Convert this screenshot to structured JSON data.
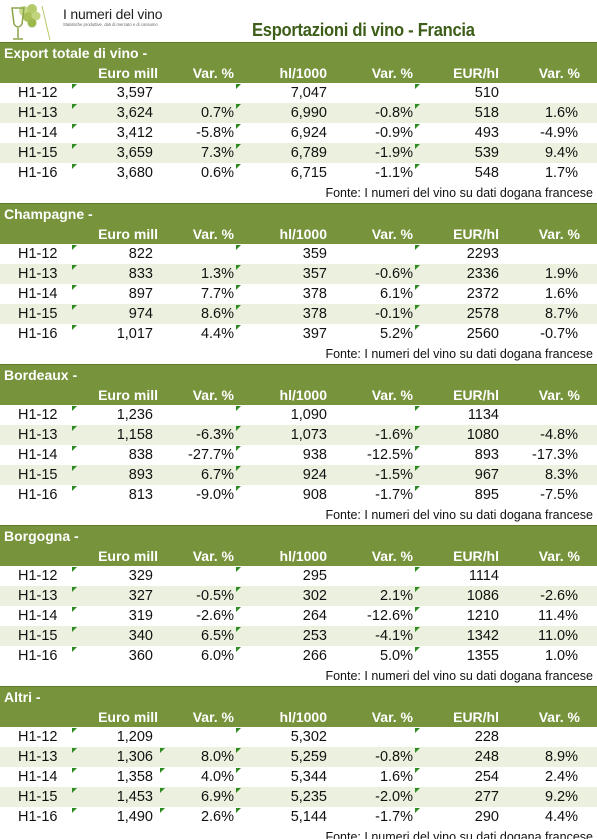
{
  "header": {
    "brand_name": "I numeri del vino",
    "brand_tagline": "Statistiche produttive, dati di mercato e di consumo",
    "page_title": "Esportazioni di vino - Francia"
  },
  "colors": {
    "header_green": "#77933c",
    "band_light": "#ebf1de",
    "title_green": "#3c5e18",
    "marker_green": "#2e8b22"
  },
  "icons": {
    "logo": "wine-glass-grapes-logo",
    "cell_marker": "green-triangle-icon"
  },
  "columns": [
    "",
    "Euro mill",
    "Var. %",
    "hl/1000",
    "Var. %",
    "EUR/hl",
    "Var. %"
  ],
  "source_note": "Fonte: I numeri del vino su dati dogana francese",
  "sections": [
    {
      "title": "Export totale di vino -",
      "rows": [
        [
          "H1-12",
          "3,597",
          "",
          "7,047",
          "",
          "510",
          ""
        ],
        [
          "H1-13",
          "3,624",
          "0.7%",
          "6,990",
          "-0.8%",
          "518",
          "1.6%"
        ],
        [
          "H1-14",
          "3,412",
          "-5.8%",
          "6,924",
          "-0.9%",
          "493",
          "-4.9%"
        ],
        [
          "H1-15",
          "3,659",
          "7.3%",
          "6,789",
          "-1.9%",
          "539",
          "9.4%"
        ],
        [
          "H1-16",
          "3,680",
          "0.6%",
          "6,715",
          "-1.1%",
          "548",
          "1.7%"
        ]
      ]
    },
    {
      "title": "Champagne -",
      "rows": [
        [
          "H1-12",
          "822",
          "",
          "359",
          "",
          "2293",
          ""
        ],
        [
          "H1-13",
          "833",
          "1.3%",
          "357",
          "-0.6%",
          "2336",
          "1.9%"
        ],
        [
          "H1-14",
          "897",
          "7.7%",
          "378",
          "6.1%",
          "2372",
          "1.6%"
        ],
        [
          "H1-15",
          "974",
          "8.6%",
          "378",
          "-0.1%",
          "2578",
          "8.7%"
        ],
        [
          "H1-16",
          "1,017",
          "4.4%",
          "397",
          "5.2%",
          "2560",
          "-0.7%"
        ]
      ]
    },
    {
      "title": "Bordeaux -",
      "rows": [
        [
          "H1-12",
          "1,236",
          "",
          "1,090",
          "",
          "1134",
          ""
        ],
        [
          "H1-13",
          "1,158",
          "-6.3%",
          "1,073",
          "-1.6%",
          "1080",
          "-4.8%"
        ],
        [
          "H1-14",
          "838",
          "-27.7%",
          "938",
          "-12.5%",
          "893",
          "-17.3%"
        ],
        [
          "H1-15",
          "893",
          "6.7%",
          "924",
          "-1.5%",
          "967",
          "8.3%"
        ],
        [
          "H1-16",
          "813",
          "-9.0%",
          "908",
          "-1.7%",
          "895",
          "-7.5%"
        ]
      ]
    },
    {
      "title": "Borgogna -",
      "rows": [
        [
          "H1-12",
          "329",
          "",
          "295",
          "",
          "1114",
          ""
        ],
        [
          "H1-13",
          "327",
          "-0.5%",
          "302",
          "2.1%",
          "1086",
          "-2.6%"
        ],
        [
          "H1-14",
          "319",
          "-2.6%",
          "264",
          "-12.6%",
          "1210",
          "11.4%"
        ],
        [
          "H1-15",
          "340",
          "6.5%",
          "253",
          "-4.1%",
          "1342",
          "11.0%"
        ],
        [
          "H1-16",
          "360",
          "6.0%",
          "266",
          "5.0%",
          "1355",
          "1.0%"
        ]
      ]
    },
    {
      "title": "Altri -",
      "rows": [
        [
          "H1-12",
          "1,209",
          "",
          "5,302",
          "",
          "228",
          ""
        ],
        [
          "H1-13",
          "1,306",
          "8.0%",
          "5,259",
          "-0.8%",
          "248",
          "8.9%"
        ],
        [
          "H1-14",
          "1,358",
          "4.0%",
          "5,344",
          "1.6%",
          "254",
          "2.4%"
        ],
        [
          "H1-15",
          "1,453",
          "6.9%",
          "5,235",
          "-2.0%",
          "277",
          "9.2%"
        ],
        [
          "H1-16",
          "1,490",
          "2.6%",
          "5,144",
          "-1.7%",
          "290",
          "4.4%"
        ]
      ]
    }
  ]
}
